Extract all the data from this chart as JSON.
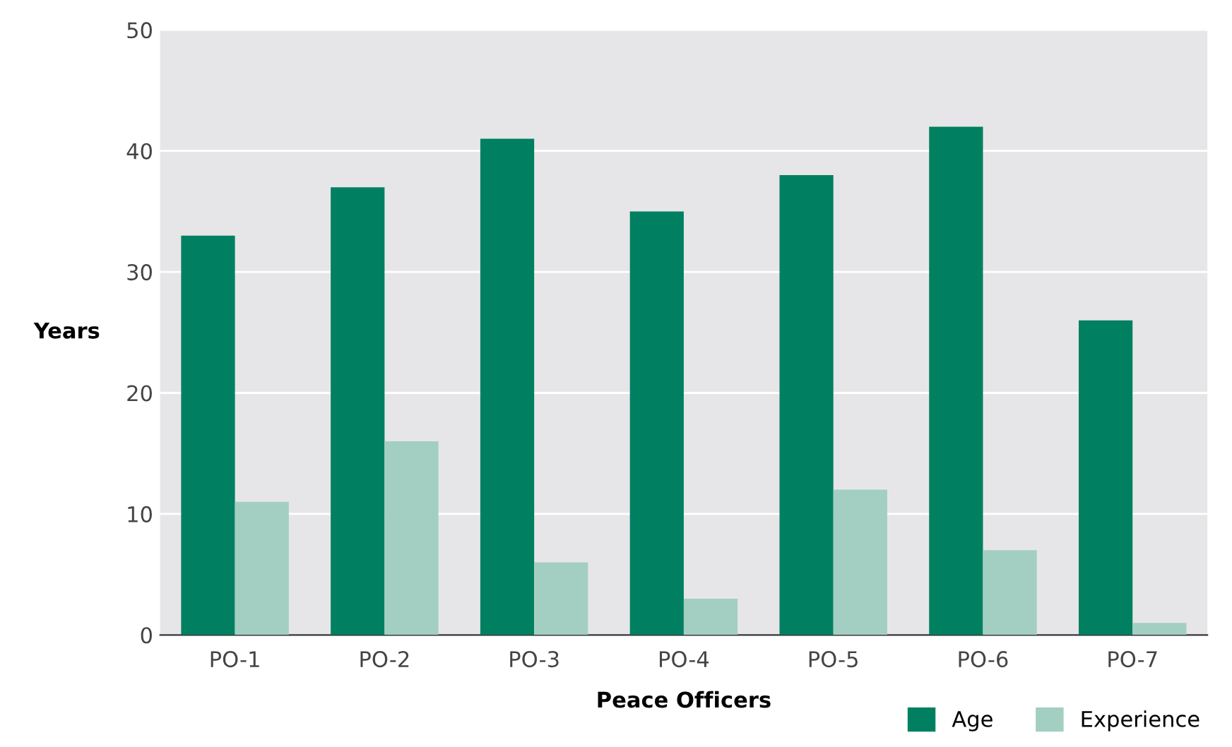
{
  "chart_data": {
    "type": "bar",
    "xlabel": "Peace Officers",
    "ylabel": "Years",
    "categories": [
      "PO-1",
      "PO-2",
      "PO-3",
      "PO-4",
      "PO-5",
      "PO-6",
      "PO-7"
    ],
    "series": [
      {
        "name": "Age",
        "color": "#008060",
        "values": [
          33,
          37,
          41,
          35,
          38,
          42,
          26
        ]
      },
      {
        "name": "Experience",
        "color": "#a3cfc2",
        "values": [
          11,
          16,
          6,
          3,
          12,
          7,
          1
        ]
      }
    ],
    "ylim": [
      0,
      50
    ],
    "yticks": [
      0,
      10,
      20,
      30,
      40,
      50
    ],
    "grid": "y",
    "legend": "bottom right"
  }
}
